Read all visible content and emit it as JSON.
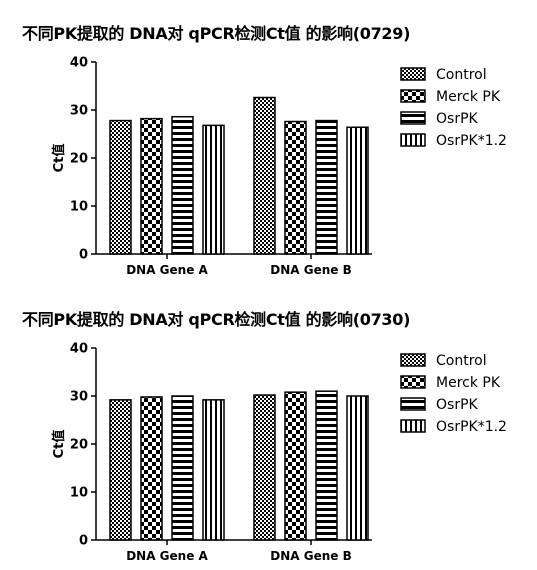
{
  "colors": {
    "axis": "#000000",
    "bar_stroke": "#000000",
    "background": "#ffffff"
  },
  "chart_data": [
    {
      "type": "bar",
      "title": "不同PK提取的 DNA对 qPCR检测Ct值 的影响(0729)",
      "xlabel": "",
      "ylabel": "Ct值",
      "ylim": [
        0,
        40
      ],
      "yticks": [
        0,
        10,
        20,
        30,
        40
      ],
      "categories": [
        "DNA Gene A",
        "DNA Gene B"
      ],
      "series": [
        {
          "name": "Control",
          "values": [
            27.8,
            32.6
          ]
        },
        {
          "name": "Merck PK",
          "values": [
            28.2,
            27.6
          ]
        },
        {
          "name": "OsrPK",
          "values": [
            28.6,
            27.8
          ]
        },
        {
          "name": "OsrPK*1.2",
          "values": [
            26.8,
            26.4
          ]
        }
      ],
      "legend_position": "right",
      "grid": false
    },
    {
      "type": "bar",
      "title": "不同PK提取的 DNA对 qPCR检测Ct值 的影响(0730)",
      "xlabel": "",
      "ylabel": "Ct值",
      "ylim": [
        0,
        40
      ],
      "yticks": [
        0,
        10,
        20,
        30,
        40
      ],
      "categories": [
        "DNA Gene A",
        "DNA Gene B"
      ],
      "series": [
        {
          "name": "Control",
          "values": [
            29.2,
            30.2
          ]
        },
        {
          "name": "Merck PK",
          "values": [
            29.8,
            30.8
          ]
        },
        {
          "name": "OsrPK",
          "values": [
            30.0,
            31.0
          ]
        },
        {
          "name": "OsrPK*1.2",
          "values": [
            29.2,
            30.0
          ]
        }
      ],
      "legend_position": "right",
      "grid": false
    }
  ]
}
